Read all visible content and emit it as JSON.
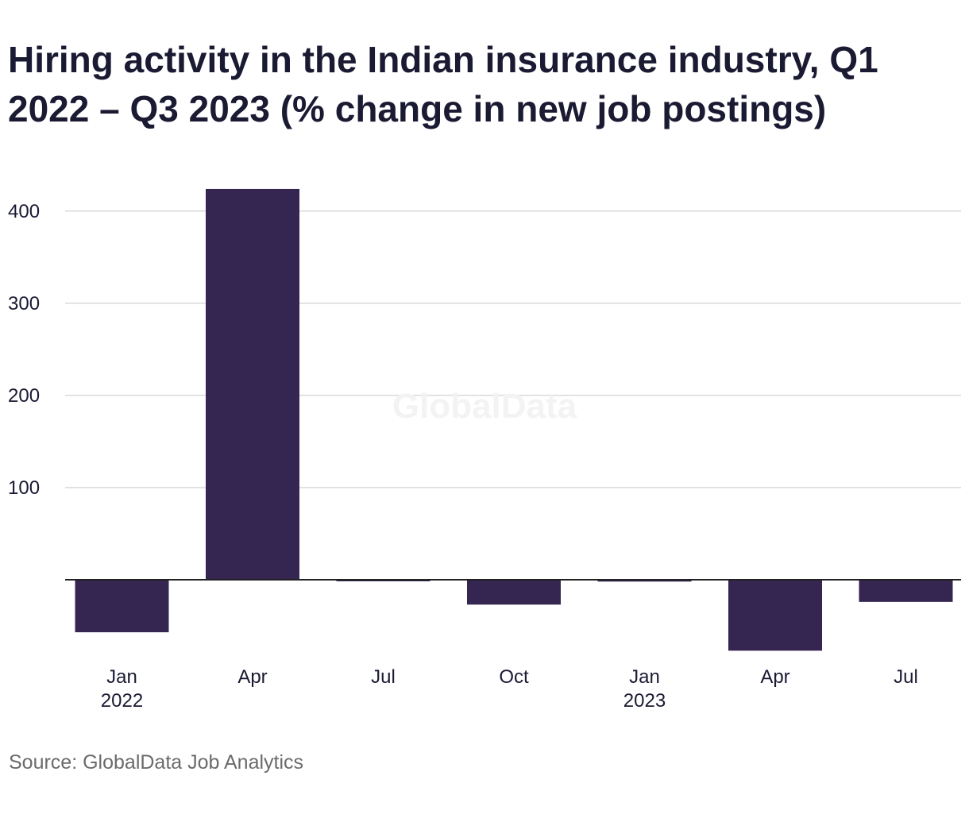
{
  "title": "Hiring activity in the Indian insurance industry, Q1 2022 – Q3 2023 (% change in new job postings)",
  "source": "Source: GlobalData Job Analytics",
  "watermark": "GlobalData",
  "colors": {
    "bar": "#352551",
    "grid": "#d9d9d9",
    "zero_line": "#222222",
    "text": "#1a1b33",
    "muted": "#6b6b6b"
  },
  "chart_data": {
    "type": "bar",
    "categories": [
      "Jan 2022",
      "Apr 2022",
      "Jul 2022",
      "Oct 2022",
      "Jan 2023",
      "Apr 2023",
      "Jul 2023"
    ],
    "tick_labels": [
      {
        "month": "Jan",
        "year": "2022"
      },
      {
        "month": "Apr",
        "year": ""
      },
      {
        "month": "Jul",
        "year": ""
      },
      {
        "month": "Oct",
        "year": ""
      },
      {
        "month": "Jan",
        "year": "2023"
      },
      {
        "month": "Apr",
        "year": ""
      },
      {
        "month": "Jul",
        "year": ""
      }
    ],
    "values": [
      -57,
      424,
      -1,
      -27,
      -2,
      -77,
      -24
    ],
    "yticks": [
      100,
      200,
      300,
      400
    ],
    "ylim": [
      -85,
      445
    ],
    "grid": true,
    "xlabel": "",
    "ylabel": ""
  }
}
